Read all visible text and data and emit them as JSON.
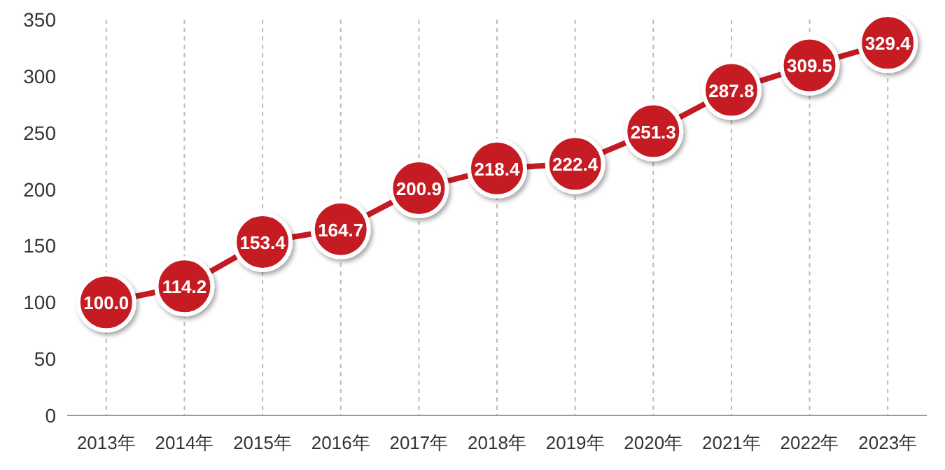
{
  "chart_data": {
    "type": "line",
    "categories": [
      "2013年",
      "2014年",
      "2015年",
      "2016年",
      "2017年",
      "2018年",
      "2019年",
      "2020年",
      "2021年",
      "2022年",
      "2023年"
    ],
    "series": [
      {
        "color": "#c41a22",
        "values": [
          100.0,
          114.2,
          153.4,
          164.7,
          200.9,
          218.4,
          222.4,
          251.3,
          287.8,
          309.5,
          329.4
        ],
        "value_labels": [
          "100.0",
          "114.2",
          "153.4",
          "164.7",
          "200.9",
          "218.4",
          "222.4",
          "251.3",
          "287.8",
          "309.5",
          "329.4"
        ]
      }
    ],
    "ylim": [
      0,
      350
    ],
    "yticks": [
      0,
      50,
      100,
      150,
      200,
      250,
      300,
      350
    ],
    "grid": "x",
    "marker": "circle",
    "line_style": "solid"
  }
}
